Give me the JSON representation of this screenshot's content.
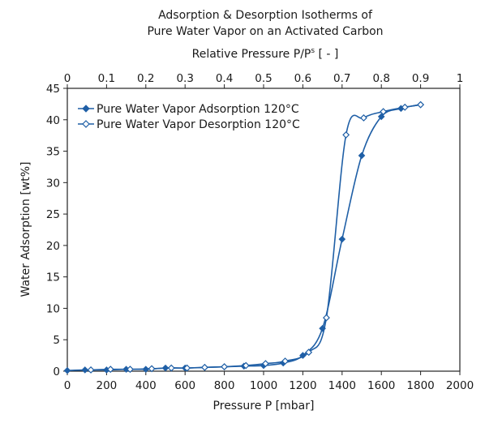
{
  "chart_data": {
    "type": "scatter",
    "title_lines": [
      "Adsorption & Desorption Isotherms of",
      "Pure Water Vapor on an Activated Carbon"
    ],
    "xlabel": "Pressure P [mbar]",
    "x2label": "Relative Pressure P/P",
    "x2label_sup": "s",
    "x2label_tail": " [ - ]",
    "ylabel": "Water Adsorption [wt%]",
    "xlim": [
      0,
      2000
    ],
    "ylim": [
      0,
      45
    ],
    "x2lim": [
      0,
      1
    ],
    "x_ticks": [
      "0",
      "200",
      "400",
      "600",
      "800",
      "1000",
      "1200",
      "1400",
      "1600",
      "1800",
      "2000"
    ],
    "y_ticks": [
      "0",
      "5",
      "10",
      "15",
      "20",
      "25",
      "30",
      "35",
      "40",
      "45"
    ],
    "x2_ticks": [
      "0",
      "0.1",
      "0.2",
      "0.3",
      "0.4",
      "0.5",
      "0.6",
      "0.7",
      "0.8",
      "0.9",
      "1"
    ],
    "grid": false,
    "legend_position": "top-left",
    "series": [
      {
        "name": "Pure Water Vapor Adsorption 120°C",
        "marker": "filled-diamond",
        "color": "#1f5fa6",
        "x": [
          0,
          90,
          200,
          300,
          400,
          500,
          600,
          700,
          800,
          900,
          1000,
          1100,
          1200,
          1300,
          1400,
          1500,
          1600,
          1700,
          1800
        ],
        "y": [
          0.1,
          0.2,
          0.2,
          0.3,
          0.3,
          0.5,
          0.5,
          0.6,
          0.7,
          0.8,
          0.9,
          1.3,
          2.5,
          6.8,
          21.0,
          34.3,
          40.5,
          41.8,
          42.4
        ]
      },
      {
        "name": "Pure Water Vapor Desorption 120°C",
        "marker": "open-diamond",
        "color": "#1f5fa6",
        "x": [
          120,
          220,
          320,
          430,
          530,
          610,
          700,
          800,
          910,
          1010,
          1110,
          1230,
          1320,
          1420,
          1510,
          1610,
          1720,
          1800
        ],
        "y": [
          0.2,
          0.3,
          0.3,
          0.4,
          0.5,
          0.5,
          0.6,
          0.7,
          0.9,
          1.2,
          1.6,
          3.0,
          8.5,
          37.6,
          40.3,
          41.3,
          42.0,
          42.4
        ]
      }
    ]
  }
}
